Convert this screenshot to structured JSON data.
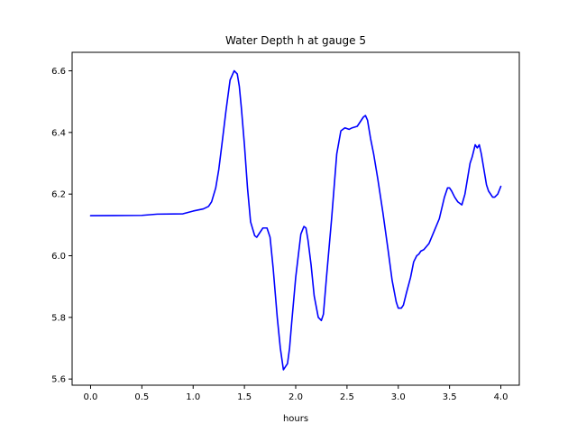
{
  "chart_data": {
    "type": "line",
    "title": "Water Depth h at gauge 5",
    "xlabel": "hours",
    "ylabel": "",
    "xlim": [
      -0.18,
      4.18
    ],
    "ylim": [
      5.58,
      6.66
    ],
    "grid": false,
    "xticks": [
      0.0,
      0.5,
      1.0,
      1.5,
      2.0,
      2.5,
      3.0,
      3.5,
      4.0
    ],
    "xtick_labels": [
      "0.0",
      "0.5",
      "1.0",
      "1.5",
      "2.0",
      "2.5",
      "3.0",
      "3.5",
      "4.0"
    ],
    "yticks": [
      5.6,
      5.8,
      6.0,
      6.2,
      6.4,
      6.6
    ],
    "ytick_labels": [
      "5.6",
      "5.8",
      "6.0",
      "6.2",
      "6.4",
      "6.6"
    ],
    "series": [
      {
        "color": "#0000ff",
        "x": [
          0.0,
          0.5,
          0.65,
          0.9,
          1.0,
          1.1,
          1.15,
          1.18,
          1.22,
          1.25,
          1.28,
          1.32,
          1.36,
          1.4,
          1.43,
          1.45,
          1.47,
          1.5,
          1.53,
          1.56,
          1.6,
          1.62,
          1.65,
          1.68,
          1.72,
          1.75,
          1.78,
          1.82,
          1.85,
          1.88,
          1.92,
          1.94,
          1.96,
          2.0,
          2.05,
          2.08,
          2.1,
          2.12,
          2.15,
          2.18,
          2.22,
          2.25,
          2.27,
          2.3,
          2.35,
          2.4,
          2.44,
          2.48,
          2.52,
          2.55,
          2.6,
          2.63,
          2.66,
          2.68,
          2.7,
          2.73,
          2.76,
          2.8,
          2.85,
          2.9,
          2.94,
          2.98,
          3.0,
          3.03,
          3.05,
          3.08,
          3.12,
          3.15,
          3.18,
          3.2,
          3.22,
          3.25,
          3.3,
          3.35,
          3.4,
          3.45,
          3.48,
          3.5,
          3.52,
          3.55,
          3.58,
          3.62,
          3.65,
          3.68,
          3.7,
          3.72,
          3.75,
          3.77,
          3.79,
          3.81,
          3.83,
          3.86,
          3.88,
          3.92,
          3.94,
          3.97,
          4.0
        ],
        "y": [
          6.13,
          6.131,
          6.135,
          6.136,
          6.145,
          6.152,
          6.16,
          6.175,
          6.22,
          6.28,
          6.36,
          6.47,
          6.57,
          6.6,
          6.59,
          6.55,
          6.48,
          6.36,
          6.22,
          6.11,
          6.065,
          6.06,
          6.075,
          6.09,
          6.09,
          6.06,
          5.96,
          5.8,
          5.7,
          5.63,
          5.65,
          5.7,
          5.78,
          5.93,
          6.07,
          6.095,
          6.09,
          6.05,
          5.97,
          5.87,
          5.8,
          5.79,
          5.81,
          5.93,
          6.12,
          6.33,
          6.405,
          6.415,
          6.41,
          6.415,
          6.42,
          6.435,
          6.45,
          6.455,
          6.44,
          6.38,
          6.33,
          6.25,
          6.14,
          6.02,
          5.92,
          5.85,
          5.83,
          5.83,
          5.84,
          5.88,
          5.93,
          5.98,
          6.0,
          6.005,
          6.015,
          6.02,
          6.04,
          6.08,
          6.12,
          6.19,
          6.22,
          6.22,
          6.21,
          6.19,
          6.175,
          6.165,
          6.2,
          6.26,
          6.3,
          6.32,
          6.36,
          6.35,
          6.36,
          6.33,
          6.29,
          6.23,
          6.21,
          6.19,
          6.19,
          6.2,
          6.225
        ]
      }
    ]
  }
}
